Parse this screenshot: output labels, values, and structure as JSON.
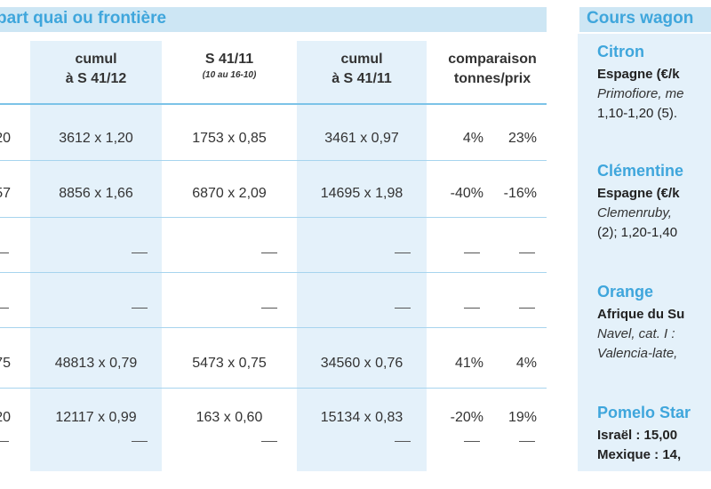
{
  "main": {
    "title": "part quai ou frontière",
    "columns": [
      {
        "line1": "cumul",
        "line2": "à S 41/12",
        "sub": ""
      },
      {
        "line1": "S 41/11",
        "line2": "",
        "sub": "(10 au 16-10)"
      },
      {
        "line1": "cumul",
        "line2": "à S 41/11",
        "sub": ""
      },
      {
        "line1": "comparaison",
        "line2": "tonnes/prix",
        "sub": ""
      }
    ],
    "partial_header": ")",
    "rows": [
      {
        "c0": "20",
        "c1": "3612 x 1,20",
        "c2": "1753 x 0,85",
        "c3": "3461 x 0,97",
        "c4a": "4%",
        "c4b": "23%"
      },
      {
        "c0": "57",
        "c1": "8856 x 1,66",
        "c2": "6870 x 2,09",
        "c3": "14695 x 1,98",
        "c4a": "-40%",
        "c4b": "-16%"
      },
      {
        "c0": "",
        "c1": "",
        "c2": "",
        "c3": "",
        "c4a": "",
        "c4b": ""
      },
      {
        "c0": "",
        "c1": "",
        "c2": "",
        "c3": "",
        "c4a": "",
        "c4b": ""
      },
      {
        "c0": "75",
        "c1": "48813 x 0,79",
        "c2": "5473 x 0,75",
        "c3": "34560 x 0,76",
        "c4a": "41%",
        "c4b": "4%"
      },
      {
        "c0": "20",
        "c1": "12117 x 0,99",
        "c2": "163 x 0,60",
        "c3": "15134 x 0,83",
        "c4a": "-20%",
        "c4b": "19%"
      }
    ]
  },
  "side": {
    "title": "Cours wagon",
    "sections": [
      {
        "head": "Citron",
        "lines": [
          "Espagne (€/k",
          "Primofiore, me",
          "1,10-1,20 (5)."
        ]
      },
      {
        "head": "Clémentine",
        "lines": [
          "Espagne (€/k",
          "Clemenruby,",
          "(2); 1,20-1,40"
        ]
      },
      {
        "head": "Orange",
        "lines": [
          "Afrique du Su",
          "Navel, cat. I :",
          "Valencia-late,"
        ]
      },
      {
        "head": "Pomelo Star",
        "lines": [
          "Israël : 15,00",
          "Mexique : 14,"
        ]
      }
    ]
  },
  "colors": {
    "accent": "#3fa6dc",
    "band": "#cde6f4",
    "shade": "#e4f1fa"
  }
}
